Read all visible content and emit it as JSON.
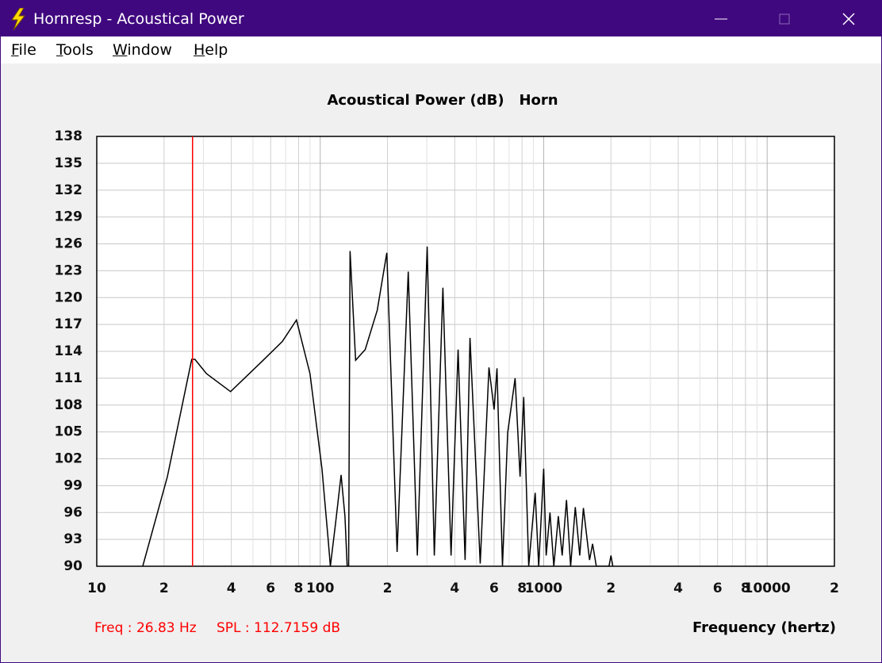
{
  "window": {
    "title": "Hornresp - Acoustical Power"
  },
  "menu": [
    "File",
    "Tools",
    "Window",
    "Help"
  ],
  "chart_data": {
    "type": "line",
    "title": "Acoustical Power (dB)",
    "subtitle": "Horn",
    "x_label": "Frequency (hertz)",
    "log_x": true,
    "grid": true,
    "color": "#000000",
    "xlim": [
      10,
      20000
    ],
    "ylim": [
      90,
      138
    ],
    "xticks": [
      10,
      {
        "value": 20,
        "label": "2"
      },
      {
        "value": 40,
        "label": "4"
      },
      {
        "value": 60,
        "label": "6"
      },
      {
        "value": 80,
        "label": "8"
      },
      100,
      {
        "value": 200,
        "label": "2"
      },
      {
        "value": 400,
        "label": "4"
      },
      {
        "value": 600,
        "label": "6"
      },
      {
        "value": 800,
        "label": "8"
      },
      1000,
      {
        "value": 2000,
        "label": "2"
      },
      {
        "value": 4000,
        "label": "4"
      },
      {
        "value": 6000,
        "label": "6"
      },
      {
        "value": 8000,
        "label": "8"
      },
      10000,
      {
        "value": 20000,
        "label": "2"
      }
    ],
    "x_minor_ticks": [
      30,
      50,
      70,
      90,
      300,
      500,
      700,
      900,
      3000,
      5000,
      7000,
      9000
    ],
    "yticks": [
      90,
      93,
      96,
      99,
      102,
      105,
      108,
      111,
      114,
      117,
      120,
      123,
      126,
      129,
      132,
      135,
      138
    ],
    "x": [
      16.06,
      20.7,
      26.6,
      27.5,
      31,
      39.7,
      55,
      67.7,
      78.3,
      90,
      101.8,
      108.6,
      111,
      117,
      124,
      129,
      132,
      134,
      136,
      144,
      159,
      180,
      198.6,
      220.8,
      247.7,
      272,
      301,
      324,
      354,
      385,
      414,
      445,
      468,
      520,
      569,
      600,
      618,
      654,
      690,
      745,
      784,
      814,
      857,
      916,
      950,
      1000,
      1026,
      1067,
      1110,
      1163,
      1210,
      1265,
      1320,
      1385,
      1450,
      1506,
      1604,
      1655,
      1720,
      1960,
      2000,
      2040
    ],
    "values": [
      90,
      100,
      113.1,
      113.1,
      111.5,
      109.5,
      112.9,
      115.1,
      117.5,
      111.5,
      100.9,
      92.9,
      90,
      94.7,
      100.2,
      95.6,
      90,
      90,
      125.2,
      113,
      114.2,
      118.6,
      125,
      91.6,
      122.9,
      91.2,
      125.7,
      91.2,
      121.1,
      91.2,
      114.2,
      90.7,
      115.5,
      90.3,
      112.2,
      107.5,
      112.1,
      90,
      104.9,
      111,
      100,
      108.9,
      90,
      98.2,
      90,
      100.9,
      91.2,
      96,
      90,
      95.6,
      91.2,
      97.4,
      90,
      96.6,
      91.2,
      96.5,
      90.7,
      92.5,
      90,
      90,
      91.2,
      90
    ],
    "cursor": {
      "x": 26.83,
      "color": "#ff0000"
    },
    "cursor_freq_label": "Freq : 26.83 Hz",
    "cursor_spl_label": "SPL : 112.7159 dB"
  }
}
